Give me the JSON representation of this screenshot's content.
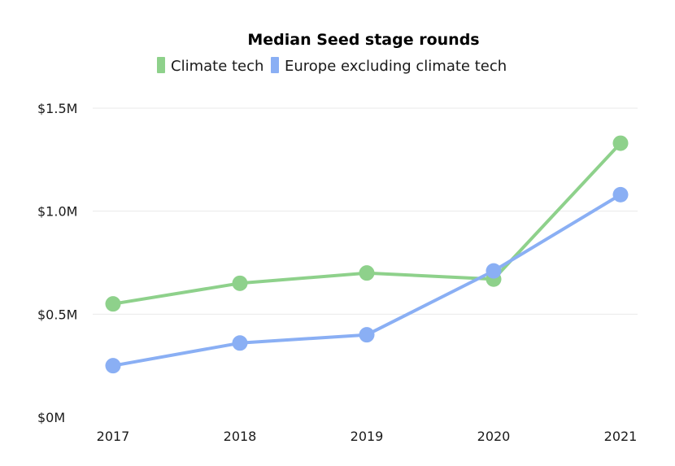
{
  "chart_data": {
    "type": "line",
    "title": "Median Seed stage rounds",
    "xlabel": "",
    "ylabel": "",
    "x": [
      "2017",
      "2018",
      "2019",
      "2020",
      "2021"
    ],
    "ylim": [
      0,
      1.5
    ],
    "y_ticks": [
      {
        "value": 0,
        "label": "$0M"
      },
      {
        "value": 0.5,
        "label": "$0.5M"
      },
      {
        "value": 1.0,
        "label": "$1.0M"
      },
      {
        "value": 1.5,
        "label": "$1.5M"
      }
    ],
    "grid": true,
    "legend_position": "top",
    "series": [
      {
        "name": "Climate tech",
        "color": "#8ed18b",
        "values": [
          0.55,
          0.65,
          0.7,
          0.67,
          1.33
        ]
      },
      {
        "name": "Europe excluding climate tech",
        "color": "#8aaff4",
        "values": [
          0.25,
          0.36,
          0.4,
          0.71,
          1.08
        ]
      }
    ]
  }
}
